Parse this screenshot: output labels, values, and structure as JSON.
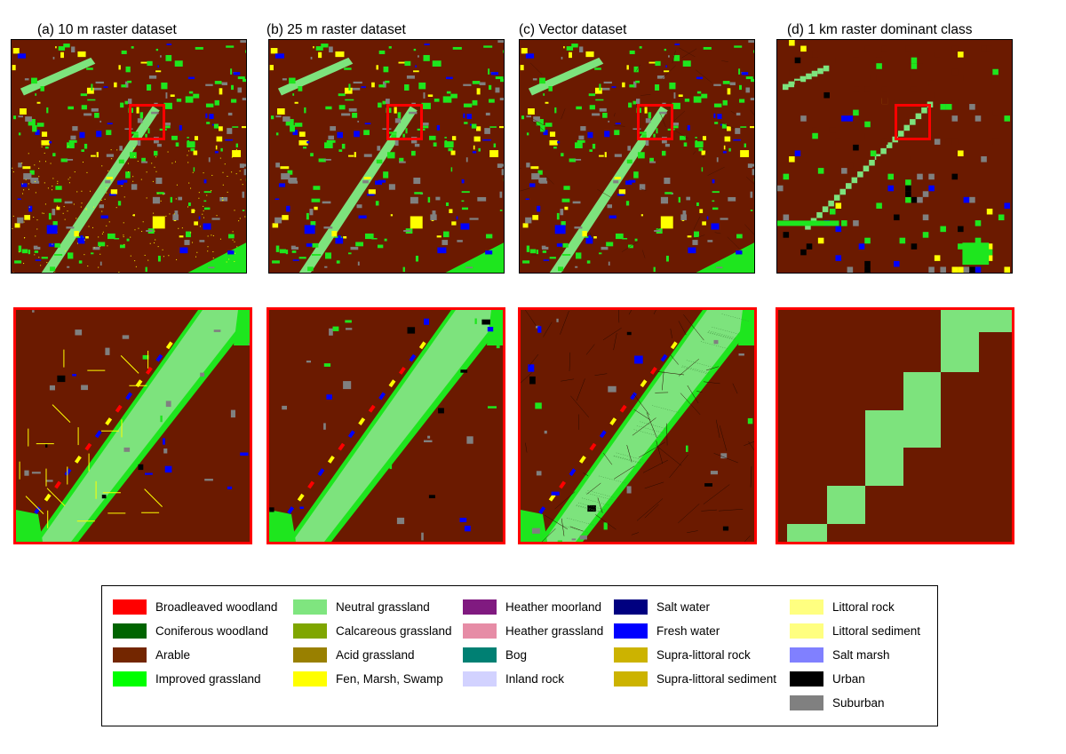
{
  "panels": [
    {
      "id": "a",
      "title": "(a) 10 m raster dataset"
    },
    {
      "id": "b",
      "title": "(b) 25 m raster dataset"
    },
    {
      "id": "c",
      "title": "(c) Vector dataset"
    },
    {
      "id": "d",
      "title": "(d) 1 km raster dominant class"
    }
  ],
  "colors": {
    "arable": "#6b1a00",
    "neutral_grassland": "#7de37d",
    "improved_grassland": "#1ee61e",
    "suburban": "#808080",
    "fen": "#ffff00",
    "fresh_water": "#0000ff",
    "urban": "#000000",
    "broadleaved": "#ff0000",
    "highlight_box": "#ff0000"
  },
  "legend": {
    "columns": [
      [
        {
          "label": "Broadleaved woodland",
          "color": "#ff0000"
        },
        {
          "label": "Coniferous woodland",
          "color": "#006400"
        },
        {
          "label": "Arable",
          "color": "#732600"
        },
        {
          "label": "Improved grassland",
          "color": "#00ff00"
        }
      ],
      [
        {
          "label": "Neutral grassland",
          "color": "#7fe57f"
        },
        {
          "label": "Calcareous grassland",
          "color": "#7fa600"
        },
        {
          "label": "Acid grassland",
          "color": "#998000"
        },
        {
          "label": "Fen, Marsh, Swamp",
          "color": "#ffff00"
        }
      ],
      [
        {
          "label": "Heather moorland",
          "color": "#801a80"
        },
        {
          "label": "Heather grassland",
          "color": "#e68ca6"
        },
        {
          "label": "Bog",
          "color": "#008073"
        },
        {
          "label": "Inland rock",
          "color": "#d2d2ff"
        }
      ],
      [
        {
          "label": "Salt water",
          "color": "#000080"
        },
        {
          "label": "Fresh water",
          "color": "#0000ff"
        },
        {
          "label": "Supra-littoral rock",
          "color": "#ccb300"
        },
        {
          "label": "Supra-littoral sediment",
          "color": "#ccb300"
        }
      ],
      [
        {
          "label": "Littoral rock",
          "color": "#ffff80"
        },
        {
          "label": "Littoral sediment",
          "color": "#ffff80"
        },
        {
          "label": "Salt marsh",
          "color": "#8080ff"
        },
        {
          "label": "Urban",
          "color": "#000000"
        },
        {
          "label": "Suburban",
          "color": "#808080"
        }
      ]
    ]
  }
}
